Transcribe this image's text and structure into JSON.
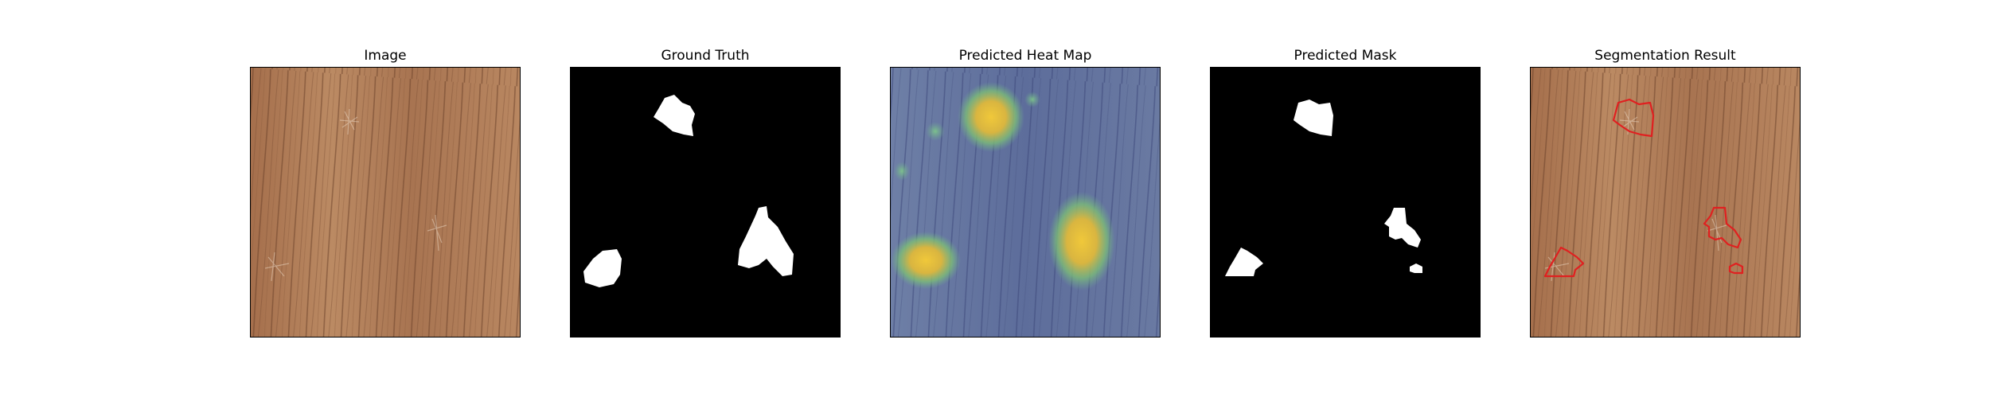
{
  "panels": [
    {
      "title": "Image",
      "content": "wood texture sample with faint scratch defects"
    },
    {
      "title": "Ground Truth",
      "content": "binary mask, three defect regions"
    },
    {
      "title": "Predicted Heat Map",
      "content": "anomaly heat map overlay"
    },
    {
      "title": "Predicted Mask",
      "content": "binary predicted mask"
    },
    {
      "title": "Segmentation Result",
      "content": "image with predicted defect contours"
    }
  ],
  "colors": {
    "wood_light": "#b8875f",
    "wood_dark": "#7a4e33",
    "mask_fg": "#ffffff",
    "mask_bg": "#000000",
    "heat_base": "#5b6d9c",
    "heat_hot": "#e7c83a",
    "contour": "#e02020"
  }
}
